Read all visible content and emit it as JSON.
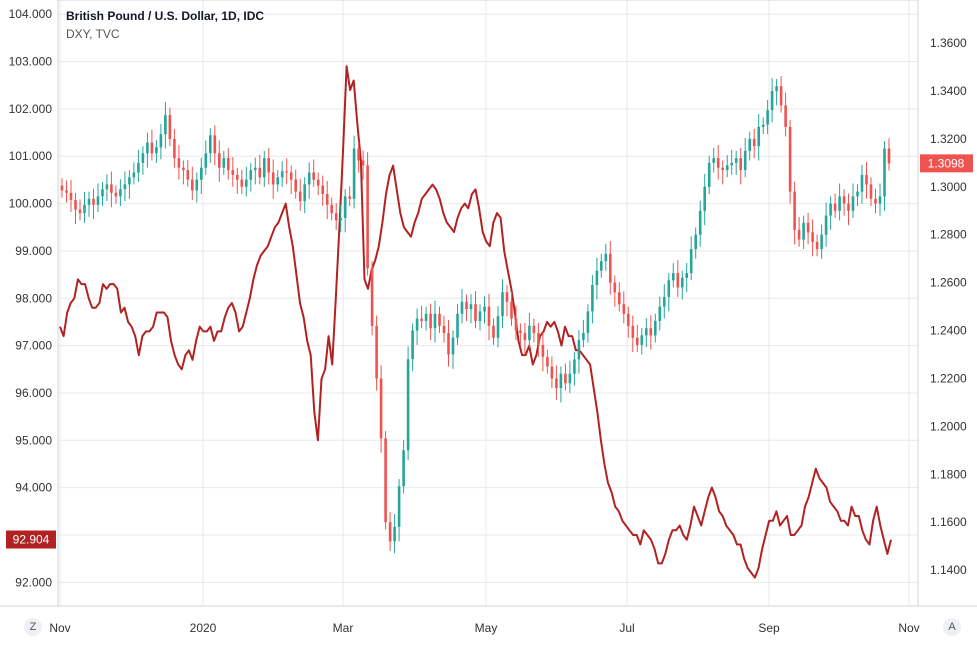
{
  "legend": {
    "title": "British Pound / U.S. Dollar, 1D, IDC",
    "subtitle": "DXY, TVC"
  },
  "controls": {
    "zoom_button": "Z",
    "auto_button": "A"
  },
  "colors": {
    "up": "#26a69a",
    "down": "#ef5350",
    "dxy_line": "#b22222",
    "grid": "#e6e9ee",
    "axis_text": "#333333",
    "price_tag": "#ef5350",
    "dxy_tag": "#b22222"
  },
  "chart_data": {
    "type": "line",
    "x_tick_labels": [
      "Nov",
      "2020",
      "Mar",
      "May",
      "Jul",
      "Sep",
      "Nov"
    ],
    "left_axis": {
      "ticks": [
        "104.000",
        "103.000",
        "102.000",
        "101.000",
        "100.000",
        "99.000",
        "98.000",
        "97.000",
        "96.000",
        "95.000",
        "94.000",
        "93.000",
        "92.000"
      ],
      "ylim": [
        91.5,
        104.3
      ],
      "last_value_label": "92.904"
    },
    "right_axis": {
      "ticks": [
        "1.3600",
        "1.3400",
        "1.3200",
        "1.3000",
        "1.2800",
        "1.2600",
        "1.2400",
        "1.2200",
        "1.2000",
        "1.1800",
        "1.1600",
        "1.1400"
      ],
      "ylim": [
        1.125,
        1.378
      ],
      "last_value_label": "1.3098"
    },
    "series": [
      {
        "name": "British Pound / U.S. Dollar",
        "type": "candlestick",
        "axis": "right",
        "close": [
          1.2985,
          1.2975,
          1.2945,
          1.2905,
          1.289,
          1.2925,
          1.295,
          1.2925,
          1.296,
          1.299,
          1.301,
          1.2975,
          1.296,
          1.299,
          1.301,
          1.304,
          1.306,
          1.31,
          1.314,
          1.3185,
          1.314,
          1.3165,
          1.322,
          1.33,
          1.32,
          1.312,
          1.308,
          1.307,
          1.303,
          1.2985,
          1.303,
          1.308,
          1.314,
          1.3215,
          1.314,
          1.308,
          1.312,
          1.307,
          1.305,
          1.303,
          1.3,
          1.303,
          1.307,
          1.308,
          1.304,
          1.312,
          1.306,
          1.301,
          1.304,
          1.3065,
          1.306,
          1.303,
          1.298,
          1.294,
          1.301,
          1.306,
          1.303,
          1.3005,
          1.297,
          1.2925,
          1.289,
          1.286,
          1.287,
          1.296,
          1.295,
          1.316,
          1.311,
          1.309,
          1.266,
          1.242,
          1.22,
          1.195,
          1.16,
          1.152,
          1.158,
          1.175,
          1.19,
          1.228,
          1.24,
          1.245,
          1.244,
          1.247,
          1.241,
          1.247,
          1.242,
          1.239,
          1.23,
          1.237,
          1.247,
          1.252,
          1.249,
          1.251,
          1.244,
          1.248,
          1.25,
          1.242,
          1.237,
          1.246,
          1.256,
          1.252,
          1.245,
          1.24,
          1.239,
          1.236,
          1.242,
          1.239,
          1.234,
          1.229,
          1.225,
          1.22,
          1.216,
          1.222,
          1.218,
          1.222,
          1.228,
          1.236,
          1.239,
          1.248,
          1.259,
          1.265,
          1.269,
          1.272,
          1.26,
          1.256,
          1.251,
          1.247,
          1.242,
          1.237,
          1.234,
          1.238,
          1.241,
          1.238,
          1.244,
          1.25,
          1.254,
          1.261,
          1.264,
          1.258,
          1.262,
          1.264,
          1.274,
          1.28,
          1.29,
          1.3,
          1.31,
          1.312,
          1.308,
          1.307,
          1.309,
          1.31,
          1.312,
          1.307,
          1.315,
          1.32,
          1.317,
          1.325,
          1.326,
          1.332,
          1.34,
          1.342,
          1.334,
          1.325,
          1.298,
          1.282,
          1.278,
          1.285,
          1.281,
          1.277,
          1.274,
          1.28,
          1.288,
          1.293,
          1.29,
          1.296,
          1.293,
          1.29,
          1.296,
          1.298,
          1.305,
          1.301,
          1.295,
          1.293,
          1.296,
          1.316,
          1.3098
        ]
      },
      {
        "name": "DXY",
        "type": "line",
        "axis": "left",
        "values": [
          97.4,
          97.2,
          97.7,
          97.9,
          98.0,
          98.4,
          98.3,
          98.3,
          98.0,
          97.8,
          97.8,
          97.9,
          98.3,
          98.2,
          98.3,
          98.3,
          98.2,
          97.7,
          97.8,
          97.5,
          97.4,
          97.2,
          96.8,
          97.2,
          97.3,
          97.3,
          97.4,
          97.7,
          97.7,
          97.7,
          97.6,
          97.1,
          96.8,
          96.6,
          96.5,
          96.8,
          96.9,
          96.7,
          97.1,
          97.4,
          97.3,
          97.3,
          97.4,
          97.1,
          97.3,
          97.3,
          97.6,
          97.8,
          97.9,
          97.7,
          97.3,
          97.4,
          97.7,
          98.0,
          98.4,
          98.7,
          98.9,
          99.0,
          99.1,
          99.3,
          99.5,
          99.6,
          99.8,
          100.0,
          99.5,
          99.1,
          98.5,
          97.9,
          97.6,
          97.1,
          96.8,
          95.6,
          95.0,
          96.3,
          96.5,
          97.2,
          96.6,
          98.0,
          99.5,
          101.1,
          102.9,
          102.4,
          102.6,
          101.7,
          100.9,
          98.4,
          98.2,
          98.6,
          98.8,
          99.1,
          99.6,
          100.2,
          100.6,
          100.8,
          100.3,
          99.8,
          99.5,
          99.4,
          99.3,
          99.6,
          99.8,
          100.1,
          100.2,
          100.3,
          100.4,
          100.3,
          100.1,
          99.8,
          99.6,
          99.5,
          99.4,
          99.7,
          99.9,
          100.0,
          99.9,
          100.2,
          100.3,
          99.9,
          99.4,
          99.2,
          99.1,
          99.6,
          99.8,
          99.7,
          99.0,
          98.6,
          98.2,
          97.7,
          97.1,
          96.8,
          96.8,
          97.0,
          96.6,
          96.8,
          97.2,
          97.3,
          97.5,
          97.4,
          97.5,
          97.3,
          97.0,
          97.4,
          97.2,
          97.2,
          96.9,
          96.9,
          96.8,
          96.7,
          96.6,
          96.1,
          95.6,
          95.0,
          94.5,
          94.1,
          93.9,
          93.6,
          93.5,
          93.3,
          93.2,
          93.1,
          93.0,
          93.0,
          92.8,
          93.1,
          93.0,
          92.9,
          92.7,
          92.4,
          92.4,
          92.6,
          92.9,
          93.1,
          93.1,
          93.2,
          93.0,
          92.9,
          93.2,
          93.6,
          93.4,
          93.2,
          93.5,
          93.8,
          94.0,
          93.8,
          93.5,
          93.4,
          93.2,
          93.1,
          93.0,
          92.8,
          92.8,
          92.5,
          92.3,
          92.2,
          92.1,
          92.3,
          92.7,
          93.0,
          93.3,
          93.3,
          93.5,
          93.2,
          93.3,
          93.4,
          93.0,
          93.0,
          93.1,
          93.2,
          93.6,
          93.8,
          94.1,
          94.4,
          94.2,
          94.1,
          94.0,
          93.7,
          93.6,
          93.5,
          93.3,
          93.3,
          93.2,
          93.6,
          93.4,
          93.4,
          93.1,
          92.9,
          92.8,
          93.3,
          93.6,
          93.2,
          92.9,
          92.6,
          92.9
        ]
      }
    ],
    "grid": true,
    "legend_position": "top-left"
  }
}
